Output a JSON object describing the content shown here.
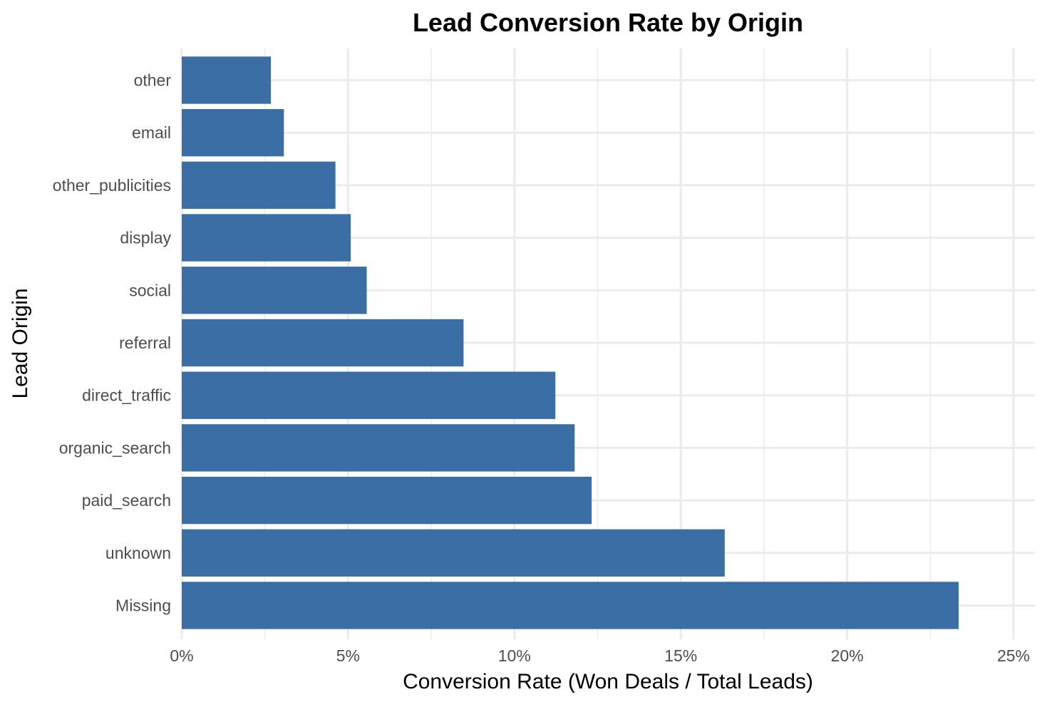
{
  "chart_data": {
    "type": "bar",
    "orientation": "horizontal",
    "title": "Lead Conversion Rate by Origin",
    "xlabel": "Conversion Rate (Won Deals / Total Leads)",
    "ylabel": "Lead Origin",
    "categories": [
      "Missing",
      "unknown",
      "paid_search",
      "organic_search",
      "direct_traffic",
      "referral",
      "social",
      "display",
      "other_publicities",
      "email",
      "other"
    ],
    "values": [
      0.2335,
      0.1632,
      0.1232,
      0.1181,
      0.1123,
      0.0847,
      0.0556,
      0.0508,
      0.0462,
      0.0307,
      0.0268
    ],
    "xlim": [
      0,
      0.25
    ],
    "x_ticks": [
      0,
      0.05,
      0.1,
      0.15,
      0.2,
      0.25
    ],
    "x_tick_labels": [
      "0%",
      "5%",
      "10%",
      "15%",
      "20%",
      "25%"
    ],
    "grid": true,
    "legend": "none",
    "bar_color": "#3a6ea5"
  }
}
